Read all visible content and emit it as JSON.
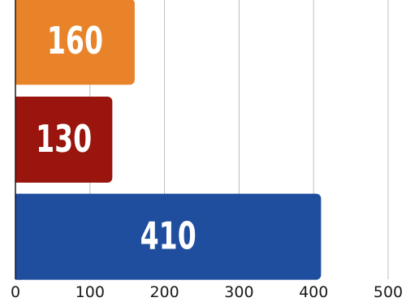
{
  "chart_data": {
    "type": "bar",
    "orientation": "horizontal",
    "categories": [
      "",
      "",
      ""
    ],
    "values": [
      160,
      130,
      410
    ],
    "colors": [
      "#E8832A",
      "#99150E",
      "#1F4E9E"
    ],
    "data_labels": [
      "160",
      "130",
      "410"
    ],
    "x_ticks": [
      "0",
      "100",
      "200",
      "300",
      "400",
      "500"
    ],
    "xlim": [
      0,
      500
    ],
    "grid": "vertical",
    "legend": "none"
  }
}
